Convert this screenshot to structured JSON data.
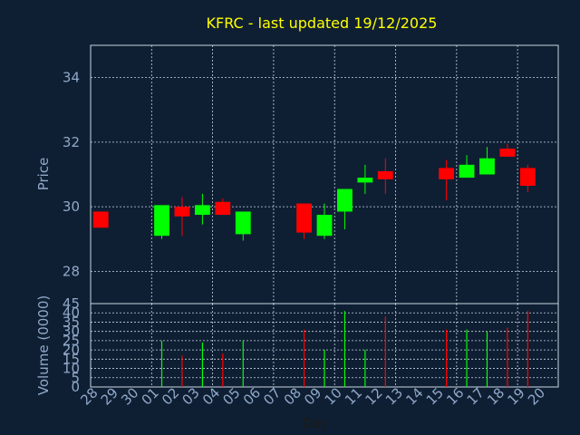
{
  "chart_data": [
    {
      "type": "candlestick",
      "title": "KFRC - last updated 19/12/2025",
      "ylabel": "Price",
      "ylim": [
        27,
        35
      ],
      "yticks": [
        28,
        30,
        32,
        34
      ],
      "grid": true,
      "x_tick_labels": [
        "28",
        "29",
        "30",
        "01",
        "02",
        "03",
        "04",
        "05",
        "06",
        "07",
        "08",
        "09",
        "10",
        "11",
        "12",
        "13",
        "14",
        "15",
        "16",
        "17",
        "18",
        "19",
        "20"
      ],
      "candles": [
        {
          "day": "28",
          "open": 29.85,
          "close": 29.35,
          "high": 29.85,
          "low": 29.35
        },
        {
          "day": "01",
          "open": 29.1,
          "close": 30.05,
          "high": 30.05,
          "low": 29.0
        },
        {
          "day": "02",
          "open": 30.0,
          "close": 29.7,
          "high": 30.3,
          "low": 29.1
        },
        {
          "day": "03",
          "open": 29.75,
          "close": 30.05,
          "high": 30.4,
          "low": 29.45
        },
        {
          "day": "04",
          "open": 30.15,
          "close": 29.75,
          "high": 30.25,
          "low": 29.75
        },
        {
          "day": "05",
          "open": 29.15,
          "close": 29.85,
          "high": 29.85,
          "low": 28.95
        },
        {
          "day": "08",
          "open": 30.1,
          "close": 29.2,
          "high": 30.1,
          "low": 29.0
        },
        {
          "day": "09",
          "open": 29.1,
          "close": 29.75,
          "high": 30.1,
          "low": 29.0
        },
        {
          "day": "10",
          "open": 29.85,
          "close": 30.55,
          "high": 30.55,
          "low": 29.3
        },
        {
          "day": "11",
          "open": 30.75,
          "close": 30.9,
          "high": 31.3,
          "low": 30.4
        },
        {
          "day": "12",
          "open": 31.1,
          "close": 30.85,
          "high": 31.5,
          "low": 30.4
        },
        {
          "day": "15",
          "open": 31.2,
          "close": 30.85,
          "high": 31.45,
          "low": 30.2
        },
        {
          "day": "16",
          "open": 30.9,
          "close": 31.3,
          "high": 31.6,
          "low": 30.9
        },
        {
          "day": "17",
          "open": 31.0,
          "close": 31.5,
          "high": 31.85,
          "low": 31.0
        },
        {
          "day": "18",
          "open": 31.8,
          "close": 31.55,
          "high": 31.95,
          "low": 31.55
        },
        {
          "day": "19",
          "open": 31.2,
          "close": 30.65,
          "high": 31.3,
          "low": 30.45
        }
      ],
      "up_color": "#00ff00",
      "down_color": "#ff0000"
    },
    {
      "type": "bar",
      "ylabel": "Volume (0000)",
      "xlabel": "Day",
      "ylim": [
        0,
        45
      ],
      "yticks": [
        0,
        5,
        10,
        15,
        20,
        25,
        30,
        35,
        40,
        45
      ],
      "grid": true,
      "x_tick_labels": [
        "28",
        "29",
        "30",
        "01",
        "02",
        "03",
        "04",
        "05",
        "06",
        "07",
        "08",
        "09",
        "10",
        "11",
        "12",
        "13",
        "14",
        "15",
        "16",
        "17",
        "18",
        "19",
        "20"
      ],
      "bars": [
        {
          "day": "01",
          "value": 25,
          "color": "#00ff00"
        },
        {
          "day": "02",
          "value": 17,
          "color": "#ff0000"
        },
        {
          "day": "03",
          "value": 24,
          "color": "#00ff00"
        },
        {
          "day": "04",
          "value": 18,
          "color": "#ff0000"
        },
        {
          "day": "05",
          "value": 25,
          "color": "#00ff00"
        },
        {
          "day": "08",
          "value": 31,
          "color": "#ff0000"
        },
        {
          "day": "09",
          "value": 20,
          "color": "#00ff00"
        },
        {
          "day": "10",
          "value": 41,
          "color": "#00ff00"
        },
        {
          "day": "11",
          "value": 20,
          "color": "#00ff00"
        },
        {
          "day": "12",
          "value": 38,
          "color": "#ff0000"
        },
        {
          "day": "15",
          "value": 31,
          "color": "#ff0000"
        },
        {
          "day": "16",
          "value": 31,
          "color": "#00ff00"
        },
        {
          "day": "17",
          "value": 30,
          "color": "#00ff00"
        },
        {
          "day": "18",
          "value": 32,
          "color": "#ff0000"
        },
        {
          "day": "19",
          "value": 41,
          "color": "#ff0000"
        }
      ]
    }
  ]
}
